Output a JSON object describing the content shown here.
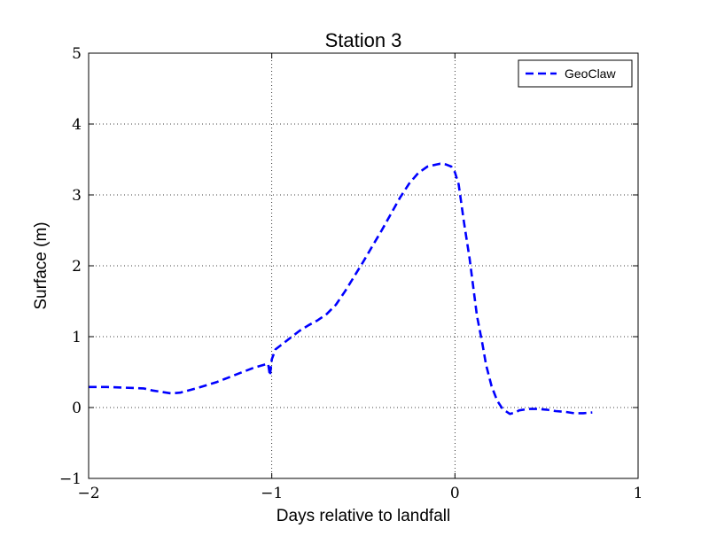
{
  "chart_data": {
    "type": "line",
    "title": "Station 3",
    "xlabel": "Days relative to landfall",
    "ylabel": "Surface (m)",
    "xlim": [
      -2,
      1
    ],
    "ylim": [
      -1,
      5
    ],
    "xticks": [
      -2,
      -1,
      0,
      1
    ],
    "yticks": [
      -1,
      0,
      1,
      2,
      3,
      4,
      5
    ],
    "xtick_labels": [
      "−2",
      "−1",
      "0",
      "1"
    ],
    "ytick_labels": [
      "−1",
      "0",
      "1",
      "2",
      "3",
      "4",
      "5"
    ],
    "grid": true,
    "legend_position": "top-right",
    "series": [
      {
        "name": "GeoClaw",
        "color": "#0000ff",
        "linestyle": "dashed",
        "x": [
          -2.0,
          -1.9,
          -1.8,
          -1.7,
          -1.65,
          -1.6,
          -1.55,
          -1.5,
          -1.4,
          -1.3,
          -1.2,
          -1.1,
          -1.02,
          -1.01,
          -1.0,
          -0.98,
          -0.95,
          -0.9,
          -0.85,
          -0.8,
          -0.75,
          -0.7,
          -0.65,
          -0.6,
          -0.55,
          -0.5,
          -0.45,
          -0.4,
          -0.35,
          -0.3,
          -0.25,
          -0.2,
          -0.15,
          -0.1,
          -0.08,
          -0.05,
          -0.02,
          0.0,
          0.02,
          0.05,
          0.08,
          0.1,
          0.12,
          0.15,
          0.17,
          0.2,
          0.23,
          0.26,
          0.3,
          0.33,
          0.35,
          0.4,
          0.45,
          0.5,
          0.55,
          0.6,
          0.65,
          0.7,
          0.75
        ],
        "y": [
          0.29,
          0.29,
          0.28,
          0.27,
          0.24,
          0.22,
          0.2,
          0.21,
          0.28,
          0.36,
          0.46,
          0.56,
          0.62,
          0.45,
          0.68,
          0.82,
          0.88,
          0.98,
          1.08,
          1.16,
          1.23,
          1.32,
          1.45,
          1.64,
          1.85,
          2.06,
          2.28,
          2.5,
          2.73,
          2.96,
          3.16,
          3.31,
          3.4,
          3.43,
          3.44,
          3.43,
          3.4,
          3.32,
          3.15,
          2.6,
          2.1,
          1.7,
          1.3,
          0.9,
          0.6,
          0.3,
          0.1,
          -0.02,
          -0.09,
          -0.07,
          -0.04,
          -0.02,
          -0.02,
          -0.03,
          -0.05,
          -0.06,
          -0.08,
          -0.08,
          -0.07
        ]
      }
    ]
  }
}
